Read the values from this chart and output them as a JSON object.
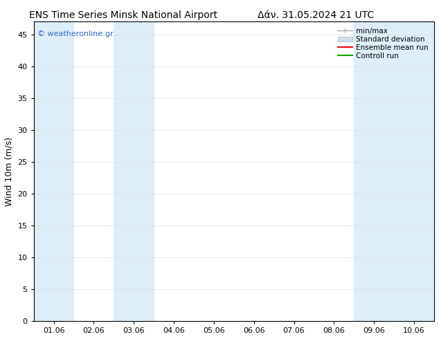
{
  "title_left": "ENS Time Series Minsk National Airport",
  "title_right": "Δάν. 31.05.2024 21 UTC",
  "ylabel": "Wind 10m (m/s)",
  "watermark": "© weatheronline.gr",
  "x_tick_labels": [
    "01.06",
    "02.06",
    "03.06",
    "04.06",
    "05.06",
    "06.06",
    "07.06",
    "08.06",
    "09.06",
    "10.06"
  ],
  "x_tick_positions": [
    0,
    1,
    2,
    3,
    4,
    5,
    6,
    7,
    8,
    9
  ],
  "xlim": [
    -0.5,
    9.5
  ],
  "ylim": [
    0,
    47
  ],
  "yticks": [
    0,
    5,
    10,
    15,
    20,
    25,
    30,
    35,
    40,
    45
  ],
  "bg_color": "#ffffff",
  "shade_color": "#ddeef8",
  "shade_bands": [
    {
      "x_start": -0.5,
      "x_end": 0.5
    },
    {
      "x_start": 1.5,
      "x_end": 2.5
    },
    {
      "x_start": 7.5,
      "x_end": 8.5
    },
    {
      "x_start": 8.5,
      "x_end": 9.5
    }
  ],
  "legend_entries": [
    {
      "label": "min/max",
      "color": "#999999",
      "style": "errorbar"
    },
    {
      "label": "Standard deviation",
      "color": "#ccdce8",
      "style": "fill"
    },
    {
      "label": "Ensemble mean run",
      "color": "#ff0000",
      "style": "line"
    },
    {
      "label": "Controll run",
      "color": "#00aa00",
      "style": "line"
    }
  ],
  "watermark_color": "#3366cc",
  "title_fontsize": 10,
  "axis_label_fontsize": 9,
  "tick_fontsize": 8,
  "grid_color": "#dddddd",
  "spine_color": "#000000"
}
